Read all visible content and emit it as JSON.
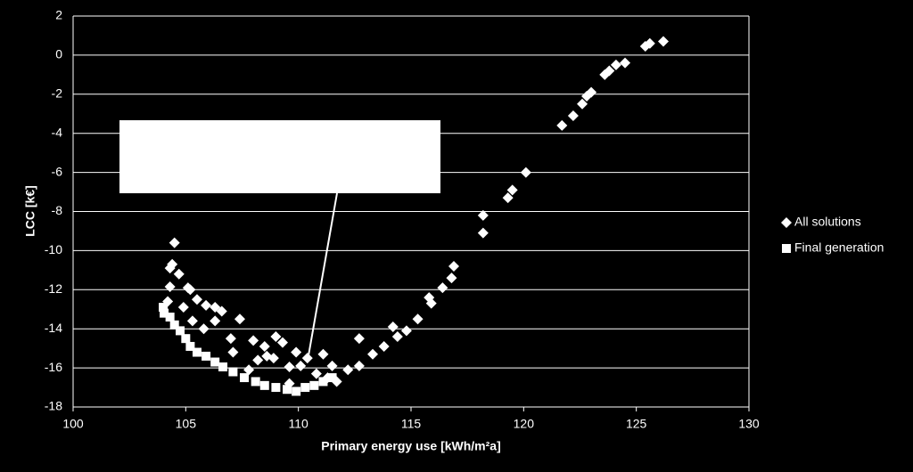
{
  "chart_data": {
    "type": "scatter",
    "xlabel": "Primary energy use [kWh/m²a]",
    "ylabel": "LCC [k€]",
    "xlim": [
      100,
      130
    ],
    "xticks": [
      100,
      105,
      110,
      115,
      120,
      125,
      130
    ],
    "ylim": [
      -18,
      2
    ],
    "yticks": [
      -18,
      -16,
      -14,
      -12,
      -10,
      -8,
      -6,
      -4,
      -2,
      0,
      2
    ],
    "grid": true,
    "legend": "right",
    "series": [
      {
        "name": "All solutions",
        "color": "#ffffff",
        "marker": "diamond",
        "x": [
          126.2,
          125.6,
          125.4,
          124.5,
          124.1,
          123.8,
          123.6,
          123.0,
          122.8,
          122.6,
          122.2,
          121.7,
          120.1,
          119.5,
          119.3,
          118.2,
          118.2,
          116.9,
          116.8,
          116.4,
          115.9,
          115.8,
          115.3,
          114.8,
          114.4,
          114.2,
          113.8,
          113.3,
          112.7,
          112.7,
          112.2,
          111.5,
          111.1,
          110.4,
          110.1,
          109.6,
          109.9,
          109.3,
          109.0,
          108.9,
          108.5,
          108.0,
          107.4,
          107.0,
          106.6,
          106.3,
          105.9,
          105.5,
          105.2,
          105.1,
          104.5,
          104.4,
          104.7,
          104.3,
          104.3,
          104.2,
          104.9,
          105.3,
          105.8,
          106.3,
          107.1,
          108.2,
          108.6,
          107.8,
          110.8,
          111.3,
          111.7,
          109.6
        ],
        "values": [
          0.7,
          0.6,
          0.45,
          -0.4,
          -0.5,
          -0.8,
          -1.0,
          -1.9,
          -2.1,
          -2.5,
          -3.1,
          -3.6,
          -6.0,
          -6.9,
          -7.3,
          -8.2,
          -9.1,
          -10.8,
          -11.4,
          -11.9,
          -12.7,
          -12.4,
          -13.5,
          -14.1,
          -14.4,
          -13.9,
          -14.9,
          -15.3,
          -15.9,
          -14.5,
          -16.1,
          -15.9,
          -15.3,
          -15.5,
          -15.9,
          -15.95,
          -15.2,
          -14.7,
          -14.4,
          -15.5,
          -14.9,
          -14.6,
          -13.5,
          -14.5,
          -13.1,
          -12.9,
          -12.8,
          -12.5,
          -12.0,
          -11.9,
          -9.6,
          -10.7,
          -11.2,
          -10.9,
          -11.85,
          -12.6,
          -12.9,
          -13.6,
          -14.0,
          -13.6,
          -15.2,
          -15.6,
          -15.4,
          -16.1,
          -16.3,
          -16.5,
          -16.7,
          -16.8
        ]
      },
      {
        "name": "Final generation",
        "color": "#ffffff",
        "marker": "square",
        "x": [
          104.0,
          104.04,
          104.3,
          104.5,
          104.75,
          105.0,
          105.2,
          105.5,
          105.9,
          106.3,
          106.65,
          107.1,
          107.6,
          108.1,
          108.5,
          109.0,
          109.5,
          109.9,
          110.3,
          110.7,
          111.1,
          111.5
        ],
        "values": [
          -12.9,
          -13.2,
          -13.4,
          -13.8,
          -14.1,
          -14.5,
          -14.9,
          -15.2,
          -15.4,
          -15.7,
          -15.95,
          -16.2,
          -16.5,
          -16.7,
          -16.9,
          -17.0,
          -17.1,
          -17.2,
          -17.0,
          -16.9,
          -16.7,
          -16.5
        ]
      }
    ]
  }
}
